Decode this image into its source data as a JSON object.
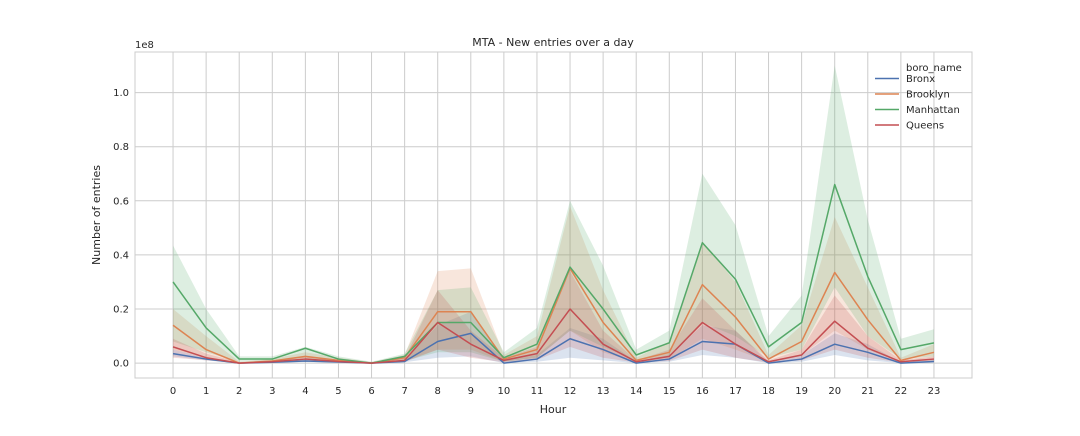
{
  "chart_data": {
    "type": "line",
    "title": "MTA - New entries over a day",
    "xlabel": "Hour",
    "ylabel": "Number of entries",
    "y_multiplier_label": "1e8",
    "x": [
      0,
      1,
      2,
      3,
      4,
      5,
      6,
      7,
      8,
      9,
      10,
      11,
      12,
      13,
      14,
      15,
      16,
      17,
      18,
      19,
      20,
      21,
      22,
      23
    ],
    "y_ticks": [
      0.0,
      0.2,
      0.4,
      0.6,
      0.8,
      1.0
    ],
    "ylim": [
      -0.055,
      1.15
    ],
    "xlim": [
      -1.15,
      24.15
    ],
    "grid": true,
    "legend_title": "boro_name",
    "legend_position": "top-right",
    "series": [
      {
        "name": "Bronx",
        "color": "#4c72b0",
        "values": [
          0.035,
          0.015,
          0.0,
          0.003,
          0.008,
          0.004,
          0.0,
          0.006,
          0.08,
          0.11,
          0.0,
          0.015,
          0.09,
          0.05,
          0.0,
          0.015,
          0.08,
          0.07,
          0.0,
          0.015,
          0.07,
          0.04,
          0.0,
          0.006
        ],
        "ci_low": [
          0.025,
          0.01,
          0.0,
          0.001,
          0.004,
          0.002,
          0.0,
          0.003,
          0.02,
          0.025,
          0.0,
          0.005,
          0.02,
          0.01,
          0.0,
          0.005,
          0.03,
          0.02,
          0.0,
          0.005,
          0.03,
          0.01,
          0.0,
          0.002
        ],
        "ci_high": [
          0.05,
          0.02,
          0.002,
          0.006,
          0.012,
          0.007,
          0.001,
          0.012,
          0.14,
          0.19,
          0.01,
          0.03,
          0.13,
          0.09,
          0.005,
          0.03,
          0.14,
          0.12,
          0.004,
          0.03,
          0.11,
          0.07,
          0.003,
          0.012
        ]
      },
      {
        "name": "Brooklyn",
        "color": "#dd8452",
        "values": [
          0.14,
          0.05,
          0.0,
          0.008,
          0.025,
          0.01,
          0.0,
          0.02,
          0.19,
          0.19,
          0.015,
          0.05,
          0.35,
          0.15,
          0.01,
          0.04,
          0.29,
          0.17,
          0.015,
          0.08,
          0.335,
          0.16,
          0.01,
          0.04
        ],
        "ci_low": [
          0.05,
          0.02,
          0.0,
          0.003,
          0.01,
          0.004,
          0.0,
          0.008,
          0.05,
          0.05,
          0.005,
          0.02,
          0.12,
          0.04,
          0.003,
          0.015,
          0.09,
          0.05,
          0.005,
          0.03,
          0.12,
          0.05,
          0.003,
          0.01
        ],
        "ci_high": [
          0.2,
          0.1,
          0.005,
          0.015,
          0.04,
          0.02,
          0.004,
          0.03,
          0.34,
          0.35,
          0.03,
          0.1,
          0.58,
          0.27,
          0.02,
          0.08,
          0.45,
          0.3,
          0.03,
          0.14,
          0.54,
          0.28,
          0.02,
          0.07
        ]
      },
      {
        "name": "Manhattan",
        "color": "#55a868",
        "values": [
          0.3,
          0.13,
          0.015,
          0.015,
          0.055,
          0.015,
          0.0,
          0.025,
          0.15,
          0.15,
          0.02,
          0.07,
          0.355,
          0.2,
          0.03,
          0.075,
          0.445,
          0.31,
          0.06,
          0.15,
          0.66,
          0.32,
          0.05,
          0.075
        ],
        "ci_low": [
          0.08,
          0.04,
          0.005,
          0.005,
          0.02,
          0.005,
          0.0,
          0.008,
          0.04,
          0.04,
          0.005,
          0.02,
          0.12,
          0.06,
          0.01,
          0.025,
          0.15,
          0.1,
          0.02,
          0.05,
          0.28,
          0.1,
          0.015,
          0.025
        ],
        "ci_high": [
          0.435,
          0.2,
          0.025,
          0.025,
          0.06,
          0.025,
          0.005,
          0.035,
          0.27,
          0.28,
          0.04,
          0.13,
          0.6,
          0.36,
          0.05,
          0.12,
          0.7,
          0.51,
          0.1,
          0.25,
          1.1,
          0.53,
          0.09,
          0.125
        ]
      },
      {
        "name": "Queens",
        "color": "#c44e52",
        "values": [
          0.06,
          0.02,
          0.0,
          0.005,
          0.015,
          0.006,
          0.0,
          0.01,
          0.15,
          0.07,
          0.01,
          0.035,
          0.2,
          0.07,
          0.005,
          0.025,
          0.15,
          0.07,
          0.005,
          0.03,
          0.155,
          0.055,
          0.005,
          0.015
        ],
        "ci_low": [
          0.02,
          0.01,
          0.0,
          0.002,
          0.006,
          0.002,
          0.0,
          0.004,
          0.05,
          0.02,
          0.003,
          0.012,
          0.06,
          0.02,
          0.002,
          0.008,
          0.05,
          0.02,
          0.002,
          0.01,
          0.05,
          0.02,
          0.002,
          0.005
        ],
        "ci_high": [
          0.09,
          0.035,
          0.003,
          0.01,
          0.025,
          0.01,
          0.002,
          0.018,
          0.27,
          0.12,
          0.02,
          0.06,
          0.34,
          0.12,
          0.01,
          0.05,
          0.24,
          0.12,
          0.01,
          0.05,
          0.25,
          0.1,
          0.01,
          0.025
        ]
      }
    ]
  }
}
